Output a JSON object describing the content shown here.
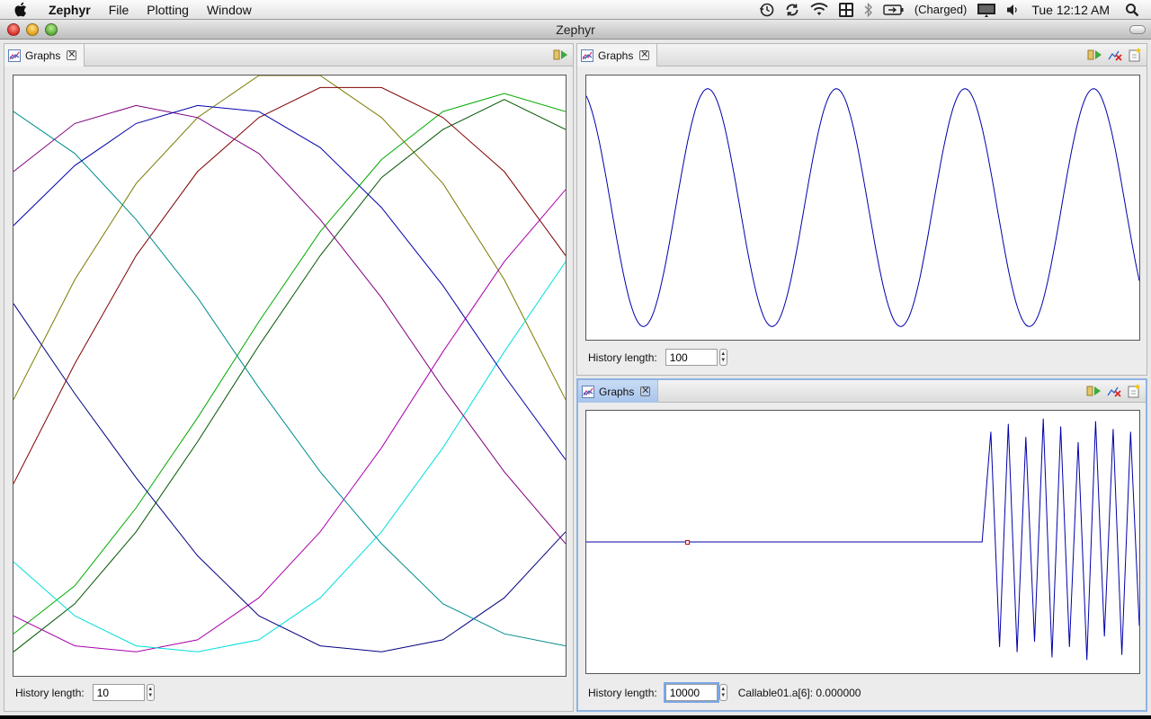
{
  "menubar": {
    "app_name": "Zephyr",
    "menus": [
      "File",
      "Plotting",
      "Window"
    ],
    "battery_status": "(Charged)",
    "clock": "Tue 12:12 AM"
  },
  "window": {
    "title": "Zephyr"
  },
  "views": {
    "left": {
      "tab_label": "Graphs",
      "history_label": "History length:",
      "history_value": "10",
      "chart_data": {
        "type": "line",
        "title": "",
        "xlabel": "",
        "ylabel": "",
        "points": 10,
        "series": [
          {
            "color": "#7a7a00",
            "values": [
              0.46,
              0.66,
              0.82,
              0.93,
              1.0,
              1.0,
              0.93,
              0.82,
              0.66,
              0.46
            ]
          },
          {
            "color": "#00aa00",
            "values": [
              0.07,
              0.15,
              0.28,
              0.43,
              0.59,
              0.74,
              0.86,
              0.94,
              0.97,
              0.94
            ]
          },
          {
            "color": "#005500",
            "values": [
              0.04,
              0.12,
              0.24,
              0.39,
              0.55,
              0.7,
              0.83,
              0.91,
              0.96,
              0.91
            ]
          },
          {
            "color": "#800000",
            "values": [
              0.32,
              0.52,
              0.7,
              0.84,
              0.93,
              0.98,
              0.98,
              0.93,
              0.84,
              0.7
            ]
          },
          {
            "color": "#aa00aa",
            "values": [
              0.1,
              0.05,
              0.04,
              0.06,
              0.13,
              0.24,
              0.38,
              0.54,
              0.69,
              0.81
            ]
          },
          {
            "color": "#00dddd",
            "values": [
              0.19,
              0.1,
              0.05,
              0.04,
              0.06,
              0.13,
              0.24,
              0.38,
              0.54,
              0.69
            ]
          },
          {
            "color": "#000080",
            "values": [
              0.62,
              0.47,
              0.33,
              0.2,
              0.1,
              0.05,
              0.04,
              0.06,
              0.13,
              0.24
            ]
          },
          {
            "color": "#008b8b",
            "values": [
              0.94,
              0.87,
              0.76,
              0.63,
              0.48,
              0.34,
              0.22,
              0.12,
              0.07,
              0.05
            ]
          },
          {
            "color": "#800080",
            "values": [
              0.84,
              0.92,
              0.95,
              0.93,
              0.87,
              0.76,
              0.63,
              0.48,
              0.34,
              0.22
            ]
          },
          {
            "color": "#0000aa",
            "values": [
              0.75,
              0.85,
              0.92,
              0.95,
              0.94,
              0.88,
              0.78,
              0.65,
              0.5,
              0.36
            ]
          }
        ]
      }
    },
    "top_right": {
      "tab_label": "Graphs",
      "history_label": "History length:",
      "history_value": "100",
      "chart_data": {
        "type": "line",
        "title": "",
        "xlabel": "",
        "ylabel": "",
        "series": [
          {
            "color": "#0000aa",
            "function": "sine",
            "cycles": 4.3,
            "start_phase_deg": 110,
            "amplitude": 0.9
          }
        ]
      }
    },
    "bottom_right": {
      "tab_label": "Graphs",
      "history_label": "History length:",
      "history_value": "10000",
      "readout": "Callable01.a[6]: 0.000000",
      "chart_data": {
        "type": "line",
        "title": "",
        "xlabel": "",
        "ylabel": "",
        "series": [
          {
            "color": "#0000aa",
            "flat_value": 0.5,
            "flat_until": 0.7,
            "oscillation": [
              0.5,
              0.5,
              0.92,
              0.1,
              0.95,
              0.08,
              0.9,
              0.12,
              0.97,
              0.06,
              0.94,
              0.1,
              0.88,
              0.05,
              0.96,
              0.14,
              0.93,
              0.07,
              0.92,
              0.18
            ]
          }
        ]
      }
    }
  }
}
